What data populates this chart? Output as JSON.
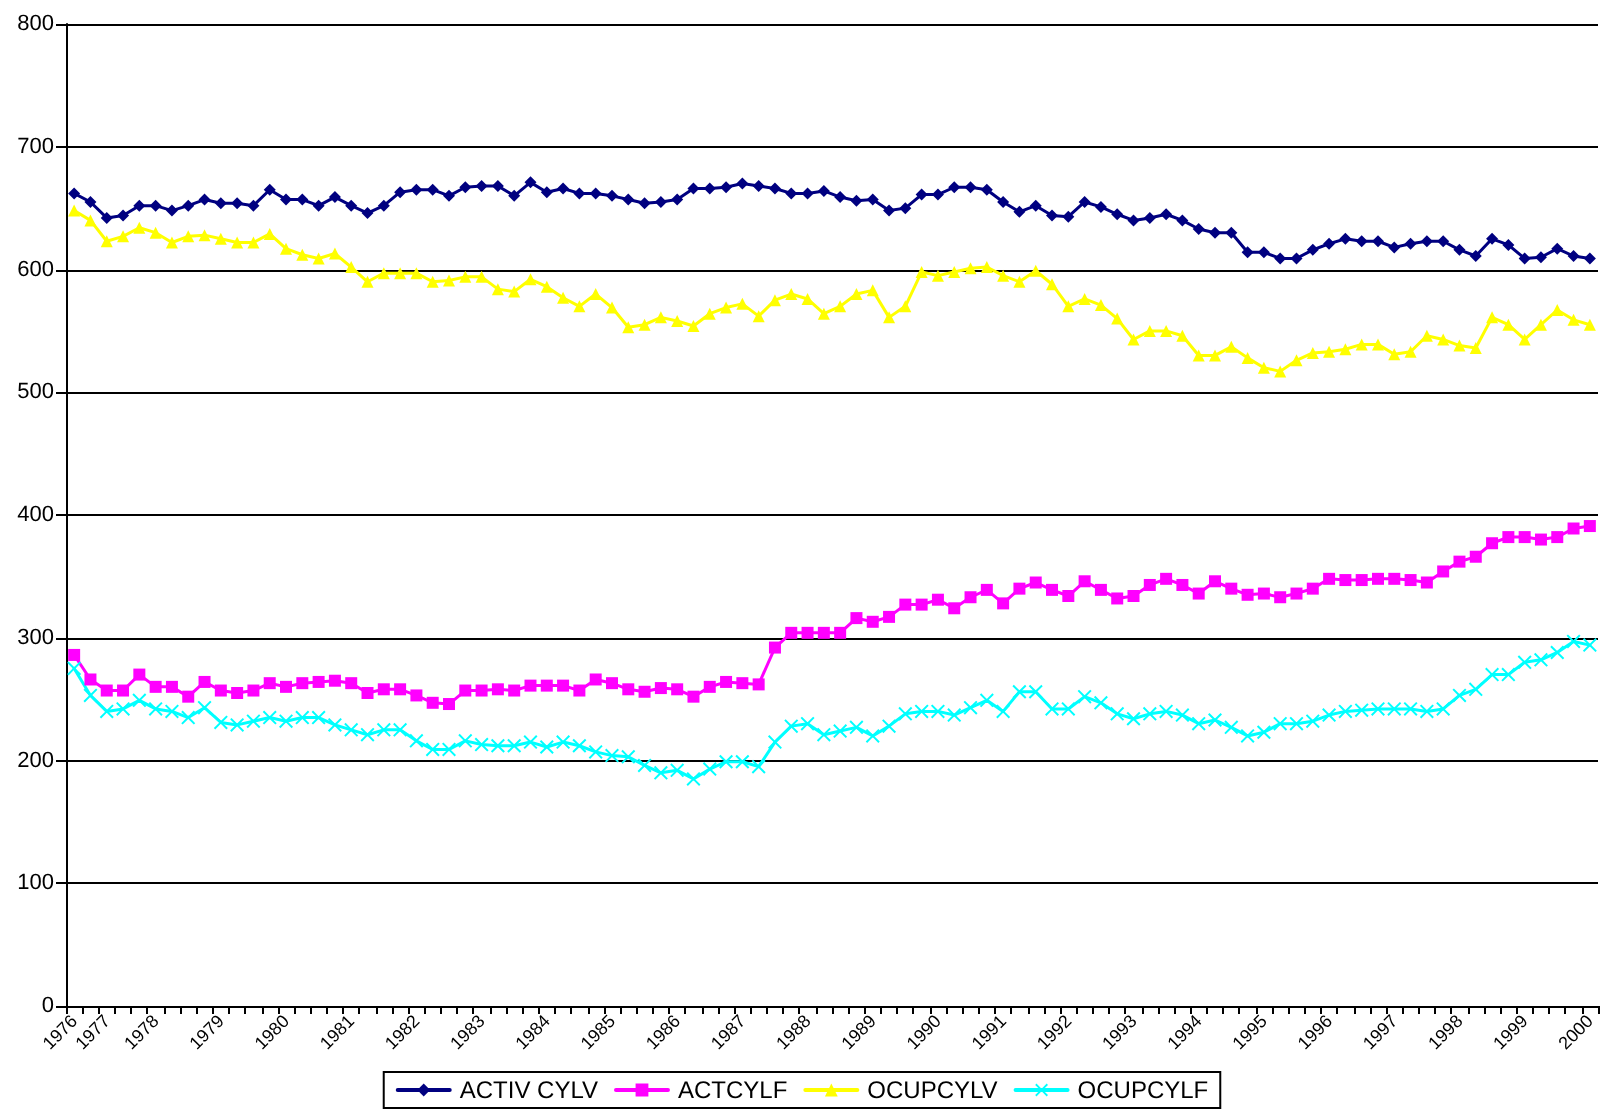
{
  "chart_data": {
    "type": "line",
    "categories": [
      "1976",
      null,
      "1977",
      null,
      null,
      "1978",
      null,
      null,
      null,
      "1979",
      null,
      null,
      null,
      "1980",
      null,
      null,
      null,
      "1981",
      null,
      null,
      null,
      "1982",
      null,
      null,
      null,
      "1983",
      null,
      null,
      null,
      "1984",
      null,
      null,
      null,
      "1985",
      null,
      null,
      null,
      "1986",
      null,
      null,
      null,
      "1987",
      null,
      null,
      null,
      "1988",
      null,
      null,
      null,
      "1989",
      null,
      null,
      null,
      "1990",
      null,
      null,
      null,
      "1991",
      null,
      null,
      null,
      "1992",
      null,
      null,
      null,
      "1993",
      null,
      null,
      null,
      "1994",
      null,
      null,
      null,
      "1995",
      null,
      null,
      null,
      "1996",
      null,
      null,
      null,
      "1997",
      null,
      null,
      null,
      "1998",
      null,
      null,
      null,
      "1999",
      null,
      null,
      null,
      "2000"
    ],
    "series": [
      {
        "name": "ACTIV CYLV",
        "color": "#000080",
        "marker": "diamond",
        "values": [
          662,
          655,
          642,
          644,
          652,
          652,
          648,
          652,
          657,
          654,
          654,
          652,
          665,
          657,
          657,
          652,
          659,
          652,
          646,
          652,
          663,
          665,
          665,
          660,
          667,
          668,
          668,
          660,
          671,
          663,
          666,
          662,
          662,
          660,
          657,
          654,
          655,
          657,
          666,
          666,
          667,
          670,
          668,
          666,
          662,
          662,
          664,
          659,
          656,
          657,
          648,
          650,
          661,
          661,
          667,
          667,
          665,
          655,
          647,
          652,
          644,
          643,
          655,
          651,
          645,
          640,
          642,
          645,
          640,
          633,
          630,
          630,
          614,
          614,
          609,
          609,
          616,
          621,
          625,
          623,
          623,
          618,
          621,
          623,
          623,
          616,
          611,
          625,
          620,
          609,
          610,
          617,
          611,
          609
        ]
      },
      {
        "name": "ACTCYLF",
        "color": "#ff00ff",
        "marker": "square",
        "values": [
          286,
          266,
          257,
          257,
          270,
          260,
          260,
          252,
          264,
          257,
          255,
          257,
          263,
          260,
          263,
          264,
          265,
          263,
          255,
          258,
          258,
          253,
          247,
          246,
          257,
          257,
          258,
          257,
          261,
          261,
          261,
          257,
          266,
          263,
          258,
          256,
          259,
          258,
          252,
          260,
          264,
          263,
          262,
          292,
          304,
          304,
          304,
          304,
          316,
          313,
          317,
          327,
          327,
          331,
          324,
          333,
          339,
          328,
          340,
          345,
          339,
          334,
          346,
          339,
          332,
          334,
          343,
          348,
          343,
          336,
          346,
          340,
          335,
          336,
          333,
          336,
          340,
          348,
          347,
          347,
          348,
          348,
          347,
          345,
          354,
          362,
          366,
          377,
          382,
          382,
          380,
          382,
          389,
          391
        ]
      },
      {
        "name": "OCUPCYLV",
        "color": "#ffff00",
        "marker": "triangle",
        "values": [
          648,
          640,
          623,
          627,
          634,
          630,
          622,
          627,
          628,
          625,
          622,
          622,
          629,
          617,
          612,
          609,
          613,
          602,
          590,
          597,
          597,
          597,
          590,
          591,
          594,
          594,
          584,
          582,
          592,
          586,
          577,
          570,
          580,
          569,
          553,
          555,
          561,
          558,
          554,
          564,
          569,
          572,
          562,
          575,
          580,
          576,
          564,
          570,
          580,
          583,
          561,
          570,
          598,
          595,
          598,
          601,
          602,
          595,
          590,
          599,
          588,
          570,
          576,
          571,
          560,
          543,
          550,
          550,
          546,
          530,
          530,
          537,
          528,
          520,
          517,
          526,
          532,
          533,
          535,
          539,
          539,
          531,
          533,
          546,
          543,
          538,
          536,
          561,
          555,
          543,
          555,
          567,
          559,
          555
        ]
      },
      {
        "name": "OCUPCYLF",
        "color": "#00ffff",
        "marker": "cross",
        "values": [
          275,
          253,
          240,
          242,
          249,
          242,
          240,
          235,
          243,
          231,
          229,
          232,
          235,
          232,
          235,
          235,
          229,
          225,
          221,
          225,
          225,
          216,
          209,
          209,
          216,
          213,
          212,
          212,
          215,
          211,
          215,
          212,
          207,
          204,
          203,
          196,
          190,
          192,
          185,
          193,
          199,
          199,
          195,
          215,
          228,
          230,
          221,
          224,
          227,
          220,
          228,
          238,
          240,
          240,
          237,
          243,
          249,
          240,
          256,
          256,
          242,
          242,
          252,
          247,
          238,
          234,
          238,
          240,
          237,
          230,
          233,
          227,
          220,
          223,
          230,
          230,
          232,
          237,
          240,
          241,
          242,
          242,
          242,
          240,
          242,
          253,
          258,
          270,
          270,
          280,
          282,
          288,
          297,
          294
        ]
      }
    ],
    "ylim": [
      0,
      800
    ],
    "yticks": [
      0,
      100,
      200,
      300,
      400,
      500,
      600,
      700,
      800
    ],
    "grid": "y",
    "legend": "bottom",
    "line_style": "solid"
  }
}
